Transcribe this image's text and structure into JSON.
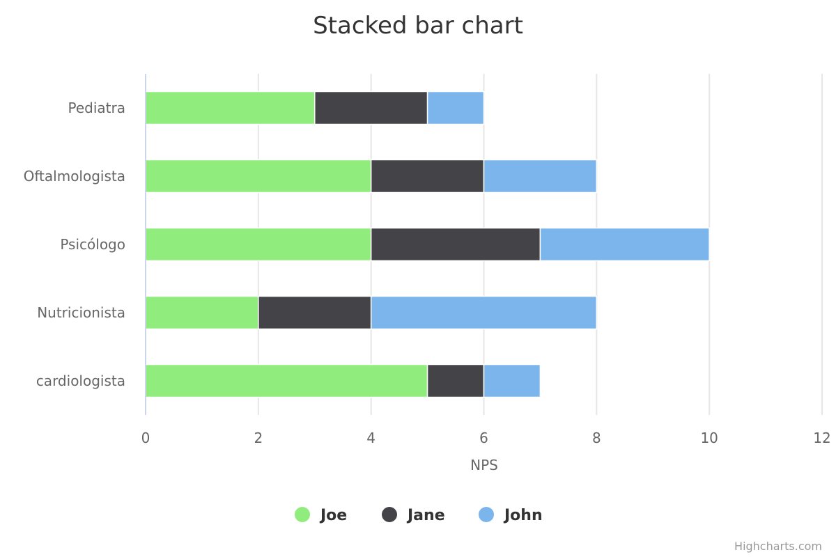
{
  "chart_data": {
    "type": "bar",
    "orientation": "horizontal",
    "stacked": true,
    "title": "Stacked bar chart",
    "categories": [
      "Pediatra",
      "Oftalmologista",
      "Psicólogo",
      "Nutricionista",
      "cardiologista"
    ],
    "series": [
      {
        "name": "Joe",
        "color": "#90ed7d",
        "values": [
          3,
          4,
          4,
          2,
          5
        ]
      },
      {
        "name": "Jane",
        "color": "#434348",
        "values": [
          2,
          2,
          3,
          2,
          1
        ]
      },
      {
        "name": "John",
        "color": "#7cb5ec",
        "values": [
          1,
          2,
          3,
          4,
          1
        ]
      }
    ],
    "xlabel": "NPS",
    "xlim": [
      0,
      12
    ],
    "ticks": [
      0,
      2,
      4,
      6,
      8,
      10,
      12
    ],
    "grid": true,
    "legend": "bottom-center"
  },
  "credits": "Highcharts.com"
}
